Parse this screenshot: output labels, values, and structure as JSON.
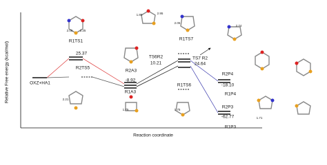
{
  "axes": {
    "y_label": "Relative Free energy (kcal/mol)",
    "x_label": "Reaction coordinate"
  },
  "labels": [
    "OXZ+HA1",
    "R1TS1",
    "25.37",
    "R2TS5",
    "R2A3",
    "-8.92",
    "R1A3",
    "R1TS7",
    "TS6R2",
    "10.21",
    "TS7 R2",
    "24.64",
    "R1TS6",
    "R2P4",
    "-18.10",
    "R1P4",
    "R2P3",
    "-62.77",
    "R1P3"
  ],
  "distances": [
    "2.05",
    "2.25",
    "1.86",
    "2.95",
    "2.05",
    "2.74",
    "2.21",
    "1.75",
    "1.75",
    "1.71"
  ]
}
